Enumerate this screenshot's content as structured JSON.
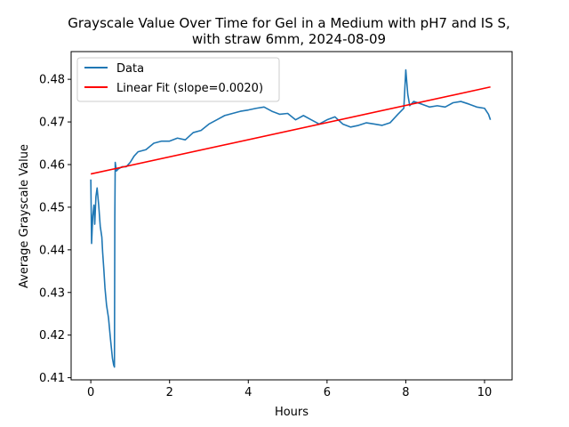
{
  "chart_data": {
    "type": "line",
    "title": "Grayscale Value Over Time for Gel in a Medium with pH7 and IS S,",
    "subtitle": "with straw 6mm, 2024-08-09",
    "xlabel": "Hours",
    "ylabel": "Average Grayscale Value",
    "xlim": [
      -0.5,
      10.7
    ],
    "ylim": [
      0.4095,
      0.4865
    ],
    "x_ticks": [
      0,
      2,
      4,
      6,
      8,
      10
    ],
    "x_tick_labels": [
      "0",
      "2",
      "4",
      "6",
      "8",
      "10"
    ],
    "y_ticks": [
      0.41,
      0.42,
      0.43,
      0.44,
      0.45,
      0.46,
      0.47,
      0.48
    ],
    "y_tick_labels": [
      "0.41",
      "0.42",
      "0.43",
      "0.44",
      "0.45",
      "0.46",
      "0.47",
      "0.48"
    ],
    "grid": false,
    "legend_position": "top-left",
    "series": [
      {
        "name": "Data",
        "color": "#1f77b4",
        "x": [
          0.0,
          0.02,
          0.05,
          0.08,
          0.1,
          0.13,
          0.16,
          0.2,
          0.24,
          0.28,
          0.3,
          0.33,
          0.36,
          0.4,
          0.45,
          0.5,
          0.55,
          0.58,
          0.6,
          0.61,
          0.62,
          0.65,
          0.7,
          0.8,
          0.9,
          1.0,
          1.1,
          1.2,
          1.4,
          1.6,
          1.8,
          2.0,
          2.2,
          2.4,
          2.6,
          2.8,
          3.0,
          3.2,
          3.4,
          3.6,
          3.8,
          4.0,
          4.2,
          4.4,
          4.6,
          4.8,
          5.0,
          5.2,
          5.4,
          5.6,
          5.8,
          6.0,
          6.2,
          6.4,
          6.6,
          6.8,
          7.0,
          7.2,
          7.4,
          7.6,
          7.8,
          7.95,
          8.0,
          8.05,
          8.1,
          8.2,
          8.4,
          8.6,
          8.8,
          9.0,
          9.2,
          9.4,
          9.6,
          9.8,
          10.0,
          10.1,
          10.15
        ],
        "y": [
          0.4565,
          0.4415,
          0.448,
          0.4505,
          0.446,
          0.4525,
          0.4545,
          0.4505,
          0.4455,
          0.443,
          0.4395,
          0.4355,
          0.431,
          0.427,
          0.424,
          0.419,
          0.4145,
          0.413,
          0.4125,
          0.4475,
          0.4605,
          0.4585,
          0.459,
          0.4595,
          0.4595,
          0.4605,
          0.462,
          0.463,
          0.4635,
          0.465,
          0.4655,
          0.4655,
          0.4662,
          0.4658,
          0.4675,
          0.468,
          0.4695,
          0.4705,
          0.4715,
          0.472,
          0.4725,
          0.4728,
          0.4732,
          0.4735,
          0.4725,
          0.4718,
          0.472,
          0.4705,
          0.4715,
          0.4705,
          0.4695,
          0.4705,
          0.4712,
          0.4695,
          0.4688,
          0.4692,
          0.4698,
          0.4695,
          0.4692,
          0.4698,
          0.4718,
          0.4732,
          0.4822,
          0.4765,
          0.4738,
          0.4748,
          0.4742,
          0.4735,
          0.4738,
          0.4735,
          0.4745,
          0.4748,
          0.4742,
          0.4735,
          0.4732,
          0.4718,
          0.4705
        ]
      },
      {
        "name": "Linear Fit (slope=0.0020)",
        "color": "#ff0000",
        "x": [
          0.0,
          10.15
        ],
        "y": [
          0.4578,
          0.4782
        ]
      }
    ]
  }
}
